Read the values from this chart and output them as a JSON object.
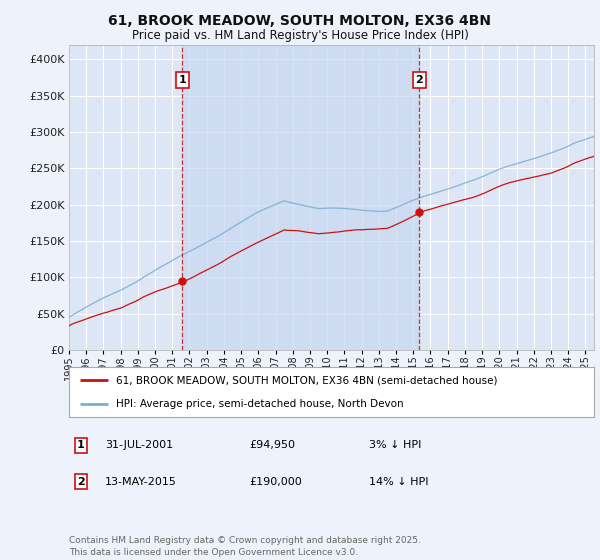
{
  "title": "61, BROOK MEADOW, SOUTH MOLTON, EX36 4BN",
  "subtitle": "Price paid vs. HM Land Registry's House Price Index (HPI)",
  "background_color": "#eef2fa",
  "plot_background": "#dce6f5",
  "shaded_region_color": "#c8d8f0",
  "grid_color": "#ffffff",
  "sale1_date_num": 2001.58,
  "sale1_price": 94950,
  "sale1_text": "31-JUL-2001",
  "sale1_price_text": "£94,950",
  "sale1_diff": "3% ↓ HPI",
  "sale2_date_num": 2015.36,
  "sale2_price": 190000,
  "sale2_text": "13-MAY-2015",
  "sale2_price_text": "£190,000",
  "sale2_diff": "14% ↓ HPI",
  "hpi_color": "#7bafd4",
  "price_color": "#cc1111",
  "vline_color": "#cc1111",
  "xlim_min": 1995.0,
  "xlim_max": 2025.5,
  "ylim_min": 0,
  "ylim_max": 420000,
  "yticks": [
    0,
    50000,
    100000,
    150000,
    200000,
    250000,
    300000,
    350000,
    400000
  ],
  "legend_label1": "61, BROOK MEADOW, SOUTH MOLTON, EX36 4BN (semi-detached house)",
  "legend_label2": "HPI: Average price, semi-detached house, North Devon",
  "footer": "Contains HM Land Registry data © Crown copyright and database right 2025.\nThis data is licensed under the Open Government Licence v3.0."
}
